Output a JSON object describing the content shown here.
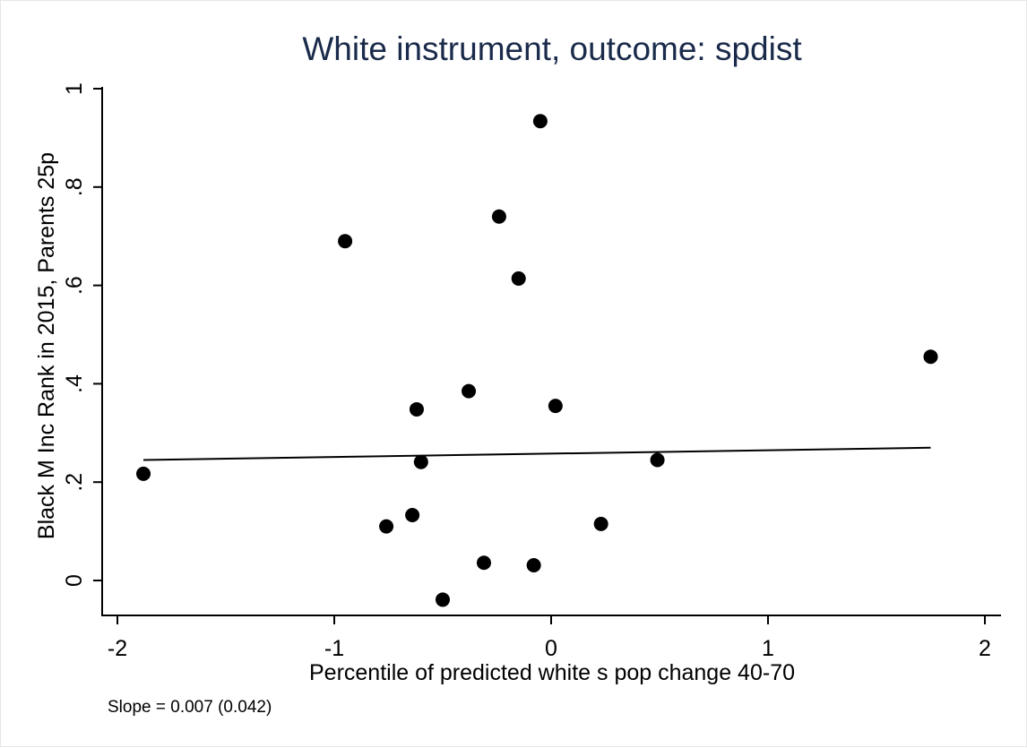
{
  "chart_data": {
    "type": "scatter",
    "title": "White instrument, outcome: spdist",
    "xlabel": "Percentile of predicted white s pop change 40-70",
    "ylabel": "Black M Inc Rank in 2015, Parents 25p",
    "note": "Slope = 0.007 (0.042)",
    "xlim": [
      -2.05,
      2.07
    ],
    "ylim": [
      -0.07,
      1.01
    ],
    "x_ticks": [
      -2,
      -1,
      0,
      1,
      2
    ],
    "x_tick_labels": [
      "-2",
      "-1",
      "0",
      "1",
      "2"
    ],
    "y_ticks": [
      0,
      0.2,
      0.4,
      0.6,
      0.8,
      1
    ],
    "y_tick_labels": [
      "0",
      ".2",
      ".4",
      ".6",
      ".8",
      "1"
    ],
    "grid": false,
    "points": [
      {
        "x": -1.88,
        "y": 0.217
      },
      {
        "x": -0.95,
        "y": 0.69
      },
      {
        "x": -0.76,
        "y": 0.11
      },
      {
        "x": -0.64,
        "y": 0.133
      },
      {
        "x": -0.62,
        "y": 0.348
      },
      {
        "x": -0.6,
        "y": 0.241
      },
      {
        "x": -0.5,
        "y": -0.039
      },
      {
        "x": -0.38,
        "y": 0.385
      },
      {
        "x": -0.31,
        "y": 0.036
      },
      {
        "x": -0.24,
        "y": 0.74
      },
      {
        "x": -0.15,
        "y": 0.614
      },
      {
        "x": -0.08,
        "y": 0.031
      },
      {
        "x": -0.05,
        "y": 0.934
      },
      {
        "x": 0.02,
        "y": 0.355
      },
      {
        "x": 0.23,
        "y": 0.115
      },
      {
        "x": 0.49,
        "y": 0.245
      },
      {
        "x": 1.75,
        "y": 0.455
      }
    ],
    "fit_line": {
      "x": [
        -1.88,
        1.75
      ],
      "y": [
        0.245,
        0.27
      ]
    },
    "colors": {
      "title": "#1a2a4a",
      "marker": "#000000",
      "line": "#000000",
      "axis": "#000000",
      "background": "#ffffff"
    }
  }
}
